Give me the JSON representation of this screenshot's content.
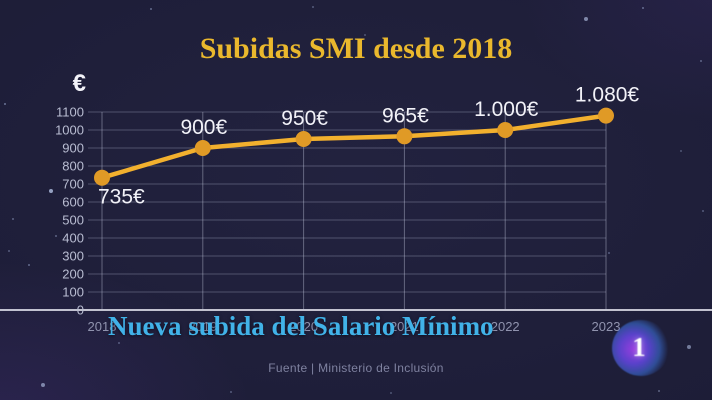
{
  "header": {
    "title": "Subidas SMI desde 2018"
  },
  "banner": {
    "headline": "Nueva subida del Salario Mínimo"
  },
  "footer": {
    "source": "Fuente | Ministerio de Inclusión"
  },
  "channel": {
    "logo_text": "1"
  },
  "colors": {
    "background_navy": "#1d1d37",
    "accent_yellow": "#eab82d",
    "headline_blue": "#41b2e8",
    "line_gold": "#f2b02e",
    "point_orange": "#e09a26",
    "label_white": "#f2f2f8",
    "axis_gray": "#b9bdd2",
    "year_gray": "#9093ae",
    "source_gray": "#7f82a0"
  },
  "chart_data": {
    "type": "line",
    "title": "Subidas SMI desde 2018",
    "unit_symbol": "€",
    "x": [
      "2018",
      "2019",
      "2020",
      "2021",
      "2022",
      "2023"
    ],
    "series": [
      {
        "name": "SMI",
        "values": [
          735,
          900,
          950,
          965,
          1000,
          1080
        ]
      }
    ],
    "point_labels": [
      "735€",
      "900€",
      "950€",
      "965€",
      "1.000€",
      "1.080€"
    ],
    "ylim": [
      0,
      1100
    ],
    "yticks": [
      0,
      100,
      200,
      300,
      400,
      500,
      600,
      700,
      800,
      900,
      1000,
      1100
    ],
    "grid": true,
    "legend": "none",
    "line_color": "#f2b02e",
    "point_color": "#e09a26"
  }
}
